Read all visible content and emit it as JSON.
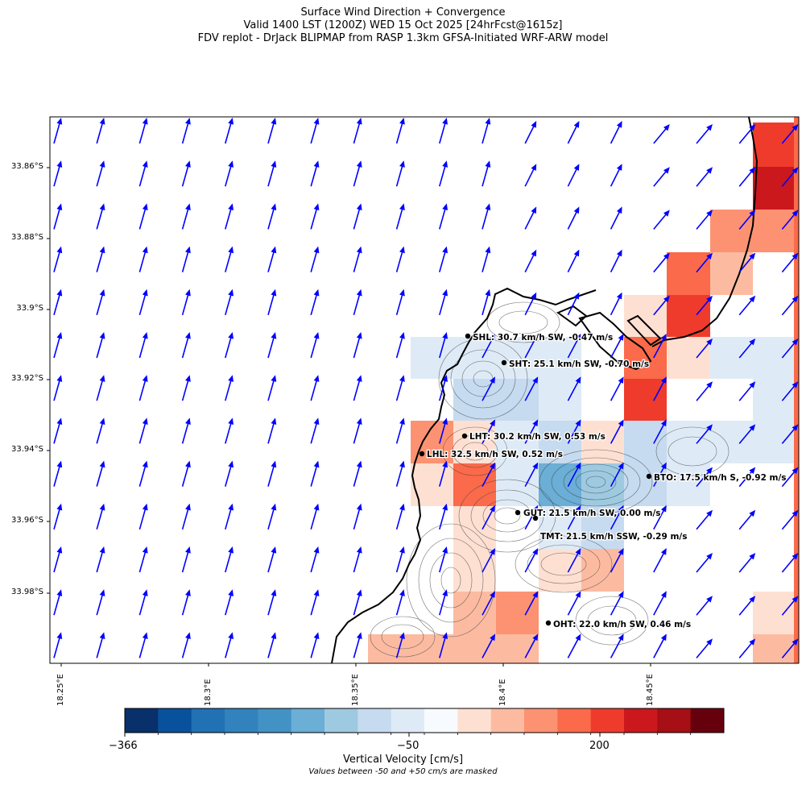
{
  "title": {
    "line1": "Surface Wind Direction + Convergence",
    "line2": "Valid 1400 LST (1200Z) WED 15 Oct 2025 [24hrFcst@1615z]",
    "line3": "FDV replot - DrJack BLIPMAP from RASP 1.3km GFSA-Initiated WRF-ARW model"
  },
  "axes": {
    "y_ticks": [
      "33.86°S",
      "33.88°S",
      "33.9°S",
      "33.92°S",
      "33.94°S",
      "33.96°S",
      "33.98°S"
    ],
    "x_ticks": [
      "18.25°E",
      "18.3°E",
      "18.35°E",
      "18.4°E",
      "18.45°E"
    ]
  },
  "stations": [
    {
      "label": "SHL: 30.7 km/h SW, -0.47 m/s"
    },
    {
      "label": "SHT: 25.1 km/h SW, -0.70 m/s"
    },
    {
      "label": "LHT: 30.2 km/h SW, 0.53 m/s"
    },
    {
      "label": "LHL: 32.5 km/h SW, 0.52 m/s"
    },
    {
      "label": "BTO: 17.5 km/h S, -0.92 m/s"
    },
    {
      "label": "GUT: 21.5 km/h SW, 0.00 m/s"
    },
    {
      "label": "TMT: 21.5 km/h SSW, -0.29 m/s"
    },
    {
      "label": "OHT: 22.0 km/h SW, 0.46 m/s"
    }
  ],
  "colorbar": {
    "title": "Vertical Velocity [cm/s]",
    "tick_labels": [
      "−366",
      "−50",
      "200"
    ],
    "note": "Values between -50 and +50 cm/s are masked",
    "colors": [
      "#08306b",
      "#08519c",
      "#2171b5",
      "#3182bd",
      "#4292c6",
      "#6baed6",
      "#9ecae1",
      "#c6dbef",
      "#deebf7",
      "#f7fbff",
      "#fee0d2",
      "#fcbba1",
      "#fc9272",
      "#fb6a4a",
      "#ef3b2c",
      "#cb181d",
      "#a50f15",
      "#67000d"
    ]
  },
  "wind_arrow_color": "#0000ff"
}
